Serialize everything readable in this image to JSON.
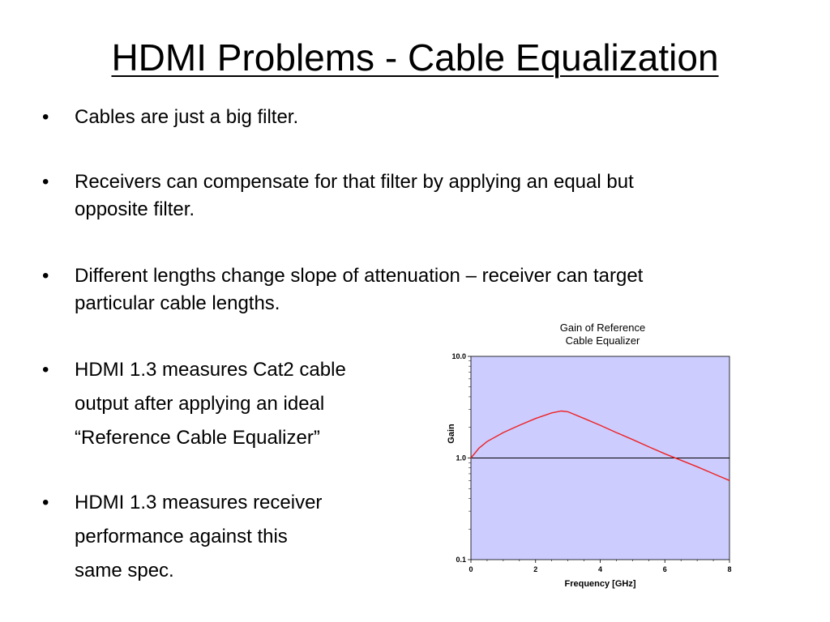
{
  "slide": {
    "title": "HDMI Problems - Cable Equalization",
    "bullet_symbol": "•",
    "bullets": [
      {
        "lines": [
          "Cables are just a big filter."
        ]
      },
      {
        "lines": [
          "Receivers can compensate for that filter by applying an equal but",
          "opposite filter."
        ]
      },
      {
        "lines": [
          "Different lengths change slope of attenuation – receiver can target",
          "particular cable lengths."
        ]
      },
      {
        "lines": [
          "HDMI 1.3 measures Cat2 cable",
          "output after applying an ideal",
          "“Reference Cable Equalizer”"
        ]
      },
      {
        "lines": [
          "HDMI 1.3 measures receiver",
          "performance against this",
          "same spec."
        ]
      }
    ]
  },
  "chart_data": {
    "type": "line",
    "title_lines": [
      "Gain of Reference",
      "Cable Equalizer"
    ],
    "xlabel": "Frequency [GHz]",
    "ylabel": "Gain",
    "xlim": [
      0,
      8
    ],
    "ylim": [
      0.1,
      10.0
    ],
    "yscale": "log",
    "x_ticks": [
      "0",
      "2",
      "4",
      "6",
      "8"
    ],
    "y_ticks": [
      "10.0",
      "1.0",
      "0.1"
    ],
    "reference_line_y": 1.0,
    "grid": false,
    "plot_background": "#ccccff",
    "series": [
      {
        "color": "#ee2222",
        "x": [
          0,
          0.25,
          0.5,
          1.0,
          1.5,
          2.0,
          2.5,
          2.8,
          3.0,
          3.5,
          4.0,
          4.5,
          5.0,
          5.5,
          6.0,
          6.5,
          7.0,
          7.5,
          8.0
        ],
        "y": [
          1.0,
          1.25,
          1.45,
          1.78,
          2.1,
          2.45,
          2.78,
          2.9,
          2.85,
          2.45,
          2.1,
          1.78,
          1.52,
          1.29,
          1.1,
          0.95,
          0.82,
          0.7,
          0.6
        ]
      }
    ]
  }
}
